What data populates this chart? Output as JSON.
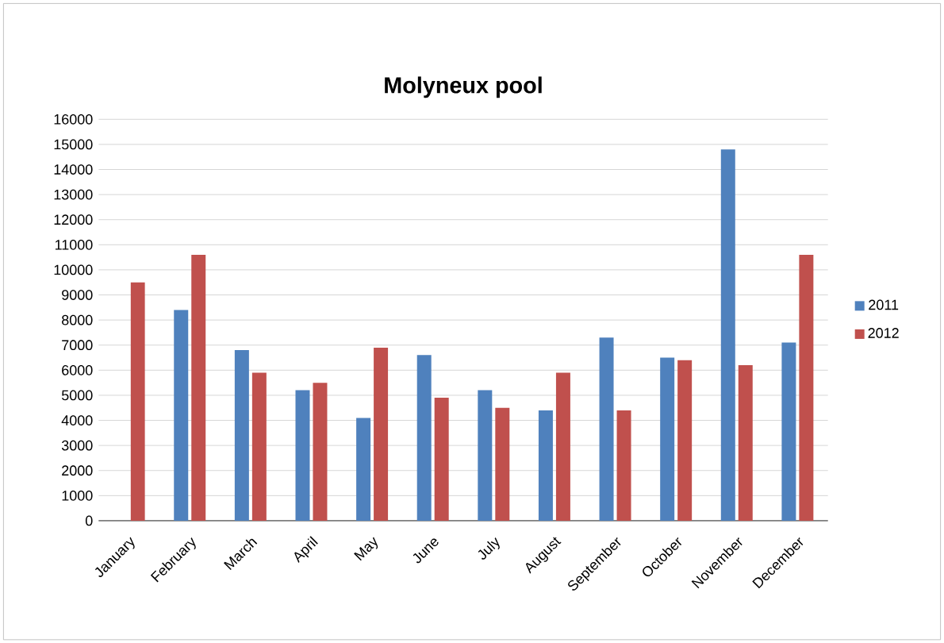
{
  "chart_data": {
    "type": "bar",
    "title": "Molyneux pool",
    "categories": [
      "January",
      "February",
      "March",
      "April",
      "May",
      "June",
      "July",
      "August",
      "September",
      "October",
      "November",
      "December"
    ],
    "series": [
      {
        "name": "2011",
        "color": "#4f81bd",
        "values": [
          null,
          8400,
          6800,
          5200,
          4100,
          6600,
          5200,
          4400,
          7300,
          6500,
          14800,
          7100
        ]
      },
      {
        "name": "2012",
        "color": "#c0504d",
        "values": [
          9500,
          10600,
          5900,
          5500,
          6900,
          4900,
          4500,
          5900,
          4400,
          6400,
          6200,
          10600
        ]
      }
    ],
    "ylim": [
      0,
      16000
    ],
    "yticks": [
      0,
      1000,
      2000,
      3000,
      4000,
      5000,
      6000,
      7000,
      8000,
      9000,
      10000,
      11000,
      12000,
      13000,
      14000,
      15000,
      16000
    ],
    "grid": "y",
    "legend": "right"
  }
}
